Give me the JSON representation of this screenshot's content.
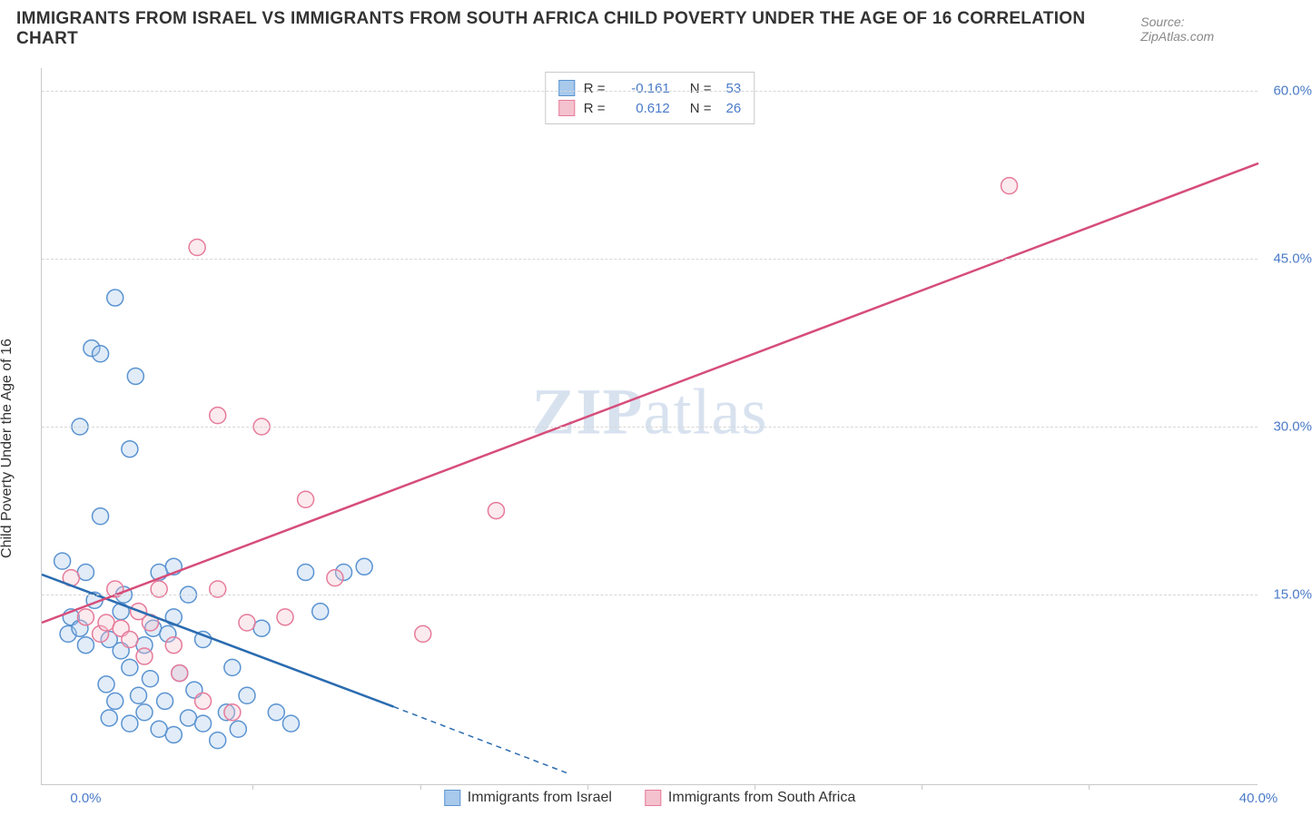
{
  "header": {
    "title": "IMMIGRANTS FROM ISRAEL VS IMMIGRANTS FROM SOUTH AFRICA CHILD POVERTY UNDER THE AGE OF 16 CORRELATION CHART",
    "source_label": "Source: ",
    "source_value": "ZipAtlas.com"
  },
  "chart": {
    "type": "scatter",
    "y_axis_label": "Child Poverty Under the Age of 16",
    "watermark_bold": "ZIP",
    "watermark_rest": "atlas",
    "background_color": "#ffffff",
    "grid_color": "#d6d6d6",
    "axis_color": "#c9c9c9",
    "tick_label_color": "#4a7bc8",
    "x_range": [
      -1.5,
      40
    ],
    "y_range": [
      -2,
      62
    ],
    "y_ticks": [
      15.0,
      30.0,
      45.0,
      60.0
    ],
    "y_tick_labels": [
      "15.0%",
      "30.0%",
      "45.0%",
      "60.0%"
    ],
    "x_ticks": [
      0.0,
      40.0
    ],
    "x_tick_labels": [
      "0.0%",
      "40.0%"
    ],
    "x_minor_ticks": [
      5.7,
      11.4,
      17.1,
      22.8,
      28.5,
      34.2
    ],
    "marker_radius": 9,
    "marker_stroke_width": 1.5,
    "marker_fill_opacity": 0.35,
    "line_width": 2.5,
    "series": [
      {
        "name": "Immigrants from Israel",
        "color_fill": "#a8c9ec",
        "color_stroke": "#5a93d1",
        "line_color": "#2b6cb0",
        "r_value": "-0.161",
        "n_value": "53",
        "trend": {
          "x1": -1.5,
          "y1": 16.8,
          "x2": 10.5,
          "y2": 5.0,
          "dash_after_x": 10.5,
          "x3": 16.5,
          "y3": -1.0
        },
        "points": [
          [
            -0.8,
            18.0
          ],
          [
            -0.6,
            11.5
          ],
          [
            -0.5,
            13.0
          ],
          [
            -0.2,
            30.0
          ],
          [
            -0.2,
            12.0
          ],
          [
            0.0,
            17.0
          ],
          [
            0.0,
            10.5
          ],
          [
            0.2,
            37.0
          ],
          [
            0.5,
            22.0
          ],
          [
            0.5,
            36.5
          ],
          [
            0.7,
            7.0
          ],
          [
            0.8,
            11.0
          ],
          [
            0.8,
            4.0
          ],
          [
            1.0,
            41.5
          ],
          [
            1.0,
            5.5
          ],
          [
            1.2,
            10.0
          ],
          [
            1.3,
            15.0
          ],
          [
            1.5,
            28.0
          ],
          [
            1.5,
            8.5
          ],
          [
            1.5,
            3.5
          ],
          [
            1.7,
            34.5
          ],
          [
            1.8,
            6.0
          ],
          [
            2.0,
            4.5
          ],
          [
            2.0,
            10.5
          ],
          [
            2.2,
            7.5
          ],
          [
            2.3,
            12.0
          ],
          [
            2.5,
            3.0
          ],
          [
            2.5,
            17.0
          ],
          [
            2.7,
            5.5
          ],
          [
            2.8,
            11.5
          ],
          [
            3.0,
            17.5
          ],
          [
            3.0,
            2.5
          ],
          [
            3.2,
            8.0
          ],
          [
            3.5,
            4.0
          ],
          [
            3.5,
            15.0
          ],
          [
            3.7,
            6.5
          ],
          [
            4.0,
            3.5
          ],
          [
            4.0,
            11.0
          ],
          [
            4.5,
            2.0
          ],
          [
            4.8,
            4.5
          ],
          [
            5.0,
            8.5
          ],
          [
            5.2,
            3.0
          ],
          [
            5.5,
            6.0
          ],
          [
            6.0,
            12.0
          ],
          [
            6.5,
            4.5
          ],
          [
            7.0,
            3.5
          ],
          [
            7.5,
            17.0
          ],
          [
            8.0,
            13.5
          ],
          [
            8.8,
            17.0
          ],
          [
            9.5,
            17.5
          ],
          [
            3.0,
            13.0
          ],
          [
            1.2,
            13.5
          ],
          [
            0.3,
            14.5
          ]
        ]
      },
      {
        "name": "Immigrants from South Africa",
        "color_fill": "#f4c2ce",
        "color_stroke": "#e67b9a",
        "line_color": "#d64d7a",
        "r_value": "0.612",
        "n_value": "26",
        "trend": {
          "x1": -1.5,
          "y1": 12.5,
          "x2": 40,
          "y2": 53.5
        },
        "points": [
          [
            -0.5,
            16.5
          ],
          [
            0.0,
            13.0
          ],
          [
            0.5,
            11.5
          ],
          [
            0.7,
            12.5
          ],
          [
            1.0,
            15.5
          ],
          [
            1.2,
            12.0
          ],
          [
            1.5,
            11.0
          ],
          [
            1.8,
            13.5
          ],
          [
            2.0,
            9.5
          ],
          [
            2.2,
            12.5
          ],
          [
            2.5,
            15.5
          ],
          [
            3.0,
            10.5
          ],
          [
            3.2,
            8.0
          ],
          [
            3.8,
            46.0
          ],
          [
            4.0,
            5.5
          ],
          [
            4.5,
            31.0
          ],
          [
            5.0,
            4.5
          ],
          [
            5.5,
            12.5
          ],
          [
            6.0,
            30.0
          ],
          [
            6.8,
            13.0
          ],
          [
            7.5,
            23.5
          ],
          [
            8.5,
            16.5
          ],
          [
            11.5,
            11.5
          ],
          [
            14.0,
            22.5
          ],
          [
            31.5,
            51.5
          ],
          [
            4.5,
            15.5
          ]
        ]
      }
    ],
    "legend_box": {
      "r_label": "R =",
      "n_label": "N ="
    },
    "bottom_legend": {
      "israel_label": "Immigrants from Israel",
      "sa_label": "Immigrants from South Africa"
    }
  }
}
